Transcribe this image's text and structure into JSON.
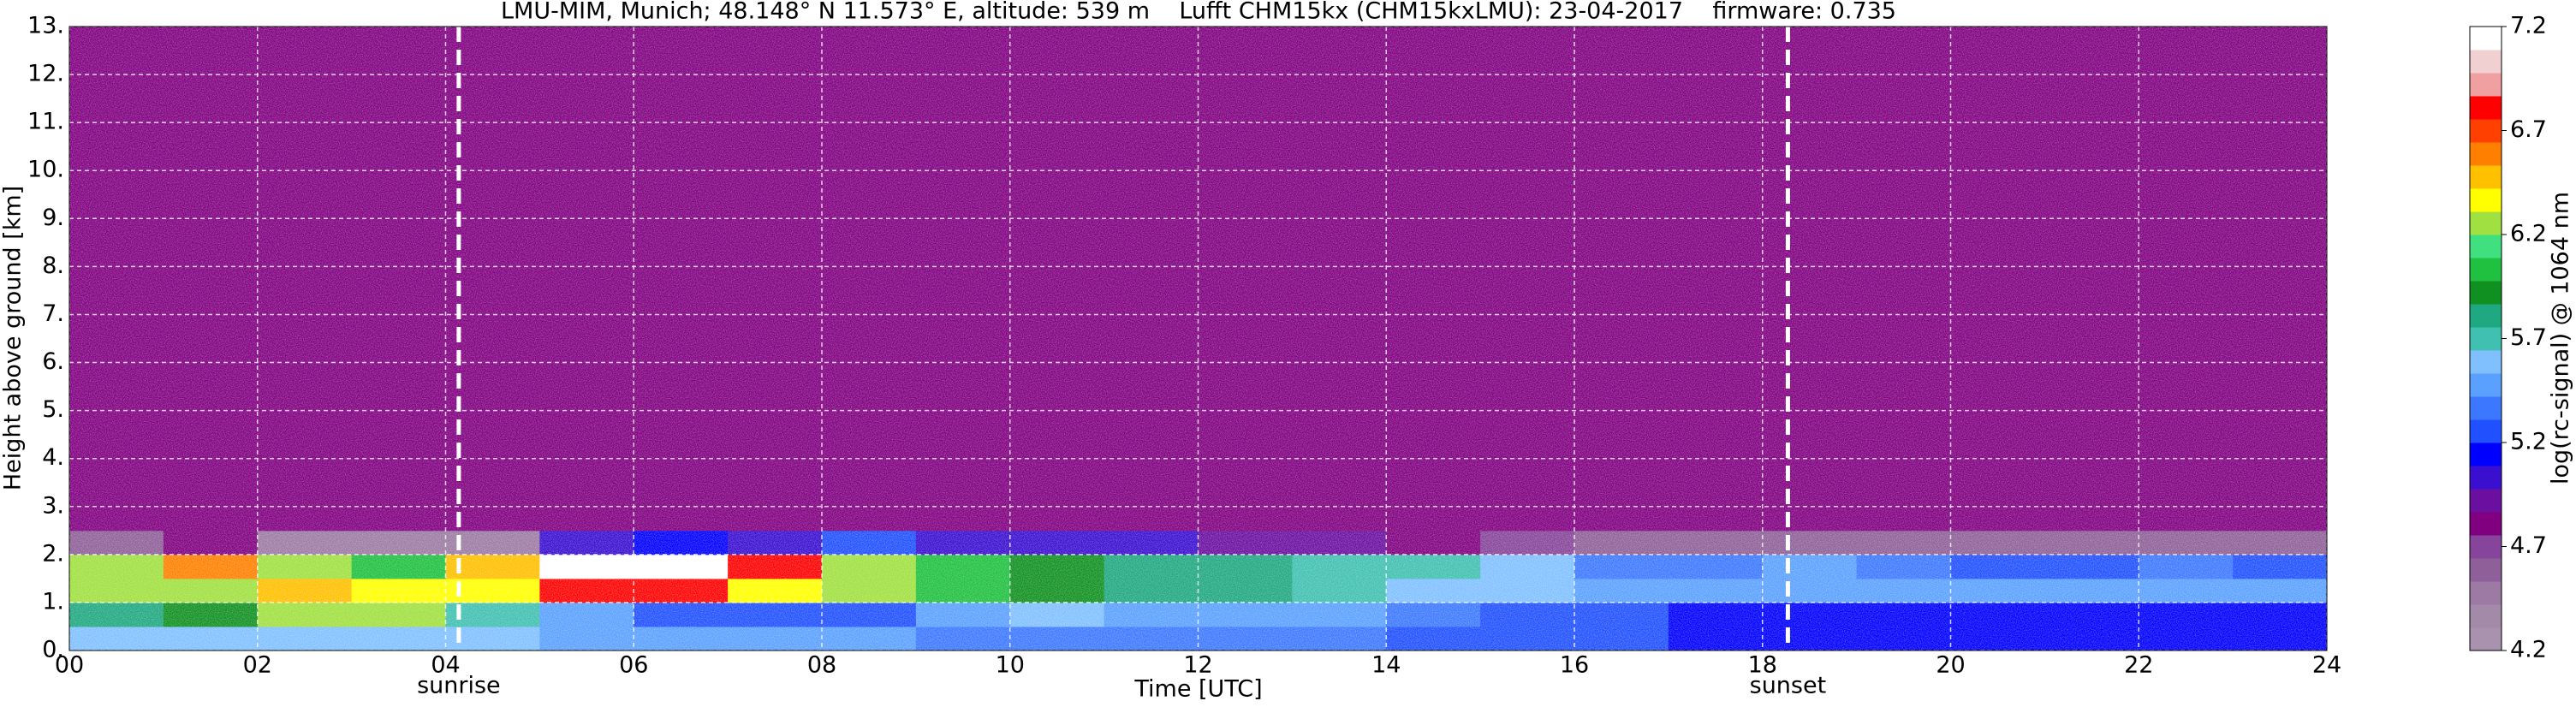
{
  "chart_data": {
    "type": "heatmap",
    "title": "LMU-MIM, Munich; 48.148° N 11.573° E, altitude: 539 m    Lufft CHM15kx (CHM15kxLMU): 23-04-2017    firmware: 0.735",
    "xlabel": "Time [UTC]",
    "ylabel": "Height above ground [km]",
    "colorbar_label": "log(rc-signal) @ 1064 nm",
    "xlim": [
      0,
      24
    ],
    "ylim": [
      0,
      13
    ],
    "xticks": [
      {
        "value": 0,
        "label": "00"
      },
      {
        "value": 2,
        "label": "02"
      },
      {
        "value": 4,
        "label": "04"
      },
      {
        "value": 6,
        "label": "06"
      },
      {
        "value": 8,
        "label": "08"
      },
      10,
      12,
      14,
      16,
      18,
      20,
      22,
      24
    ],
    "yticks": [
      {
        "value": 0,
        "label": "0."
      },
      {
        "value": 1,
        "label": "1."
      },
      {
        "value": 2,
        "label": "2."
      },
      {
        "value": 3,
        "label": "3."
      },
      {
        "value": 4,
        "label": "4."
      },
      {
        "value": 5,
        "label": "5."
      },
      {
        "value": 6,
        "label": "6."
      },
      {
        "value": 7,
        "label": "7."
      },
      {
        "value": 8,
        "label": "8."
      },
      {
        "value": 9,
        "label": "9."
      },
      {
        "value": 10,
        "label": "10."
      },
      {
        "value": 11,
        "label": "11."
      },
      {
        "value": 12,
        "label": "12."
      },
      {
        "value": 13,
        "label": "13."
      }
    ],
    "grid": true,
    "clim": [
      4.2,
      7.2
    ],
    "cticks": [
      4.2,
      4.7,
      5.2,
      5.7,
      6.2,
      6.7,
      7.2
    ],
    "colors": [
      "#a992ad",
      "#a48aa9",
      "#9c7aa3",
      "#8e5f98",
      "#86449a",
      "#800080",
      "#6a0fa0",
      "#3a0fd0",
      "#0000ff",
      "#2050ff",
      "#3c78ff",
      "#5aa0ff",
      "#80c0ff",
      "#40c0b0",
      "#20a880",
      "#109020",
      "#20c040",
      "#40e080",
      "#a0e040",
      "#ffff00",
      "#ffc000",
      "#ff8000",
      "#ff4000",
      "#ff0000",
      "#f0a0a0",
      "#f0d0d0",
      "#ffffff"
    ],
    "x_edges": [
      0,
      1,
      2,
      3,
      4,
      5,
      6,
      7,
      8,
      9,
      10,
      11,
      12,
      13,
      14,
      15,
      16,
      17,
      18,
      19,
      20,
      21,
      22,
      23,
      24
    ],
    "y_edges": [
      0,
      0.5,
      1,
      1.5,
      2,
      2.5,
      13
    ],
    "z": [
      [
        5.6,
        5.6,
        5.6,
        5.6,
        5.6,
        5.5,
        5.5,
        5.5,
        5.5,
        5.4,
        5.4,
        5.4,
        5.4,
        5.4,
        5.3,
        5.3,
        5.2,
        5.1,
        5.1,
        5.1,
        5.1,
        5.1,
        5.1,
        5.1
      ],
      [
        5.8,
        5.9,
        6.2,
        6.3,
        5.7,
        5.5,
        5.3,
        5.2,
        5.3,
        5.5,
        5.6,
        5.5,
        5.5,
        5.5,
        5.4,
        5.3,
        5.2,
        5.1,
        5.1,
        5.1,
        5.1,
        5.1,
        5.1,
        5.1
      ],
      [
        6.2,
        6.3,
        6.5,
        6.4,
        6.4,
        6.8,
        6.8,
        6.4,
        6.2,
        6.0,
        5.9,
        5.8,
        5.8,
        5.7,
        5.6,
        5.6,
        5.5,
        5.5,
        5.5,
        5.5,
        5.5,
        5.5,
        5.5,
        5.5
      ],
      [
        6.3,
        6.6,
        6.2,
        6.0,
        6.5,
        7.1,
        7.1,
        6.8,
        6.3,
        6.0,
        5.9,
        5.8,
        5.8,
        5.7,
        5.7,
        5.6,
        5.4,
        5.4,
        5.5,
        5.4,
        5.3,
        5.3,
        5.4,
        5.3
      ],
      [
        4.6,
        4.8,
        4.5,
        4.5,
        4.5,
        5.0,
        5.1,
        5.0,
        5.2,
        5.0,
        5.0,
        5.0,
        4.9,
        4.9,
        4.8,
        4.7,
        4.6,
        4.6,
        4.6,
        4.6,
        4.6,
        4.6,
        4.6,
        4.6
      ],
      [
        4.8,
        4.8,
        4.8,
        4.8,
        4.8,
        4.8,
        4.8,
        4.8,
        4.8,
        4.8,
        4.8,
        4.8,
        4.8,
        4.8,
        4.8,
        4.8,
        4.8,
        4.8,
        4.8,
        4.8,
        4.8,
        4.8,
        4.8,
        4.8
      ]
    ],
    "markers": [
      {
        "x": 4.14,
        "label": "sunrise"
      },
      {
        "x": 18.27,
        "label": "sunset"
      }
    ]
  }
}
